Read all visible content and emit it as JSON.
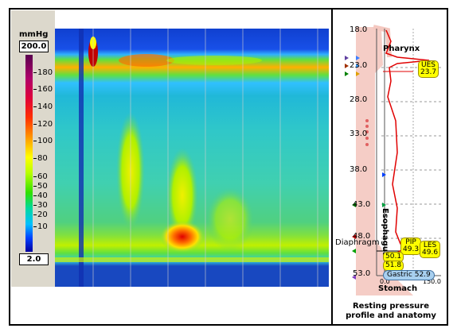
{
  "scale": {
    "unit": "mmHg",
    "max": "200.0",
    "min": "2.0",
    "ticks": [
      "180",
      "160",
      "140",
      "120",
      "100",
      "80",
      "60",
      "50",
      "40",
      "30",
      "20",
      "10"
    ]
  },
  "profile": {
    "y_labels": [
      "18.0",
      "23.0",
      "28.0",
      "33.0",
      "38.0",
      "43.0",
      "48.0",
      "53.0"
    ],
    "x_labels": [
      "0.0",
      "150.0"
    ],
    "regions": {
      "pharynx": "Pharynx",
      "esophagus": "Esophagus",
      "diaphragm": "Diaphragm",
      "stomach": "Stomach"
    },
    "markers": {
      "ues_name": "UES",
      "ues_value": "23.7",
      "pip_name": "PIP",
      "pip_value": "49.3",
      "les_name": "LES",
      "les_value": "49.6",
      "m1": "50.1",
      "m2": "51.8",
      "gastric": "Gastric 52.9"
    },
    "caption_line1": "Resting pressure",
    "caption_line2": "profile and anatomy"
  },
  "colors": {
    "profile_line": "#e00000",
    "anatomy_fill": "#f4c8c0"
  }
}
